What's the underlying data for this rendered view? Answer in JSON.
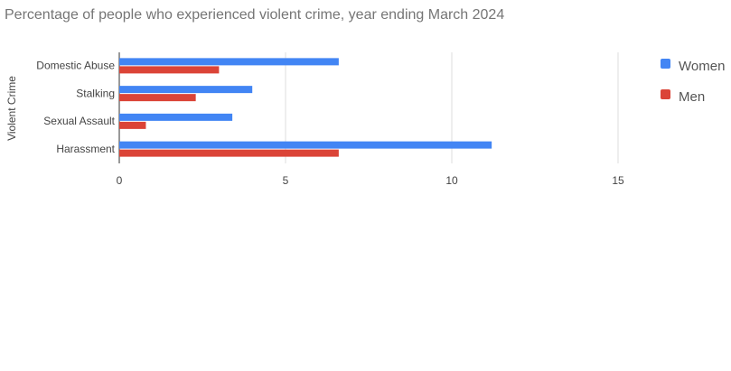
{
  "chart_data": {
    "type": "hbar",
    "title": "Percentage of people who experienced violent crime, year ending March 2024",
    "y_label": "Violent Crime",
    "categories": [
      "Domestic Abuse",
      "Stalking",
      "Sexual Assault",
      "Harassment"
    ],
    "series": [
      {
        "name": "Women",
        "color": "#4285f4",
        "values": [
          6.6,
          4.0,
          3.4,
          11.2
        ]
      },
      {
        "name": "Men",
        "color": "#db4437",
        "values": [
          3.0,
          2.3,
          0.8,
          6.6
        ]
      }
    ],
    "xlim": [
      0,
      15
    ],
    "xticks": [
      0,
      5,
      10,
      15
    ],
    "grid": true,
    "legend": "right"
  }
}
